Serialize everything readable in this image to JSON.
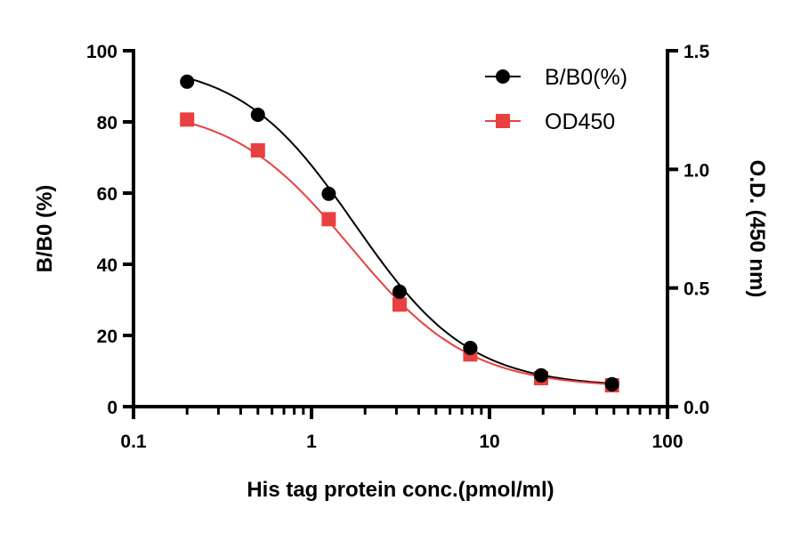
{
  "chart_data": {
    "type": "scatter",
    "xlabel": "His tag protein conc.(pmol/ml)",
    "ylabel": "B/B0 (%)",
    "y2label": "O.D. (450 nm)",
    "xscale": "log",
    "xlim": [
      0.1,
      100
    ],
    "ylim": [
      0,
      100
    ],
    "y2lim": [
      0,
      1.5
    ],
    "xticks": [
      "0.1",
      "1",
      "10",
      "100"
    ],
    "yticks": [
      "0",
      "20",
      "40",
      "60",
      "80",
      "100"
    ],
    "y2ticks": [
      "0.0",
      "0.5",
      "1.0",
      "1.5"
    ],
    "grid": false,
    "legend_position": "top-right",
    "x": [
      0.2,
      0.5,
      1.25,
      3.125,
      7.8,
      19.5,
      48.8
    ],
    "series": [
      {
        "name": "B/B0(%)",
        "axis": "left",
        "marker": "circle",
        "color": "#000000",
        "values": [
          91.3,
          82.0,
          59.8,
          32.3,
          16.5,
          8.8,
          6.3
        ]
      },
      {
        "name": "OD450",
        "axis": "right",
        "marker": "square",
        "color": "#e84040",
        "values": [
          1.21,
          1.08,
          0.79,
          0.43,
          0.22,
          0.12,
          0.09
        ]
      }
    ]
  }
}
